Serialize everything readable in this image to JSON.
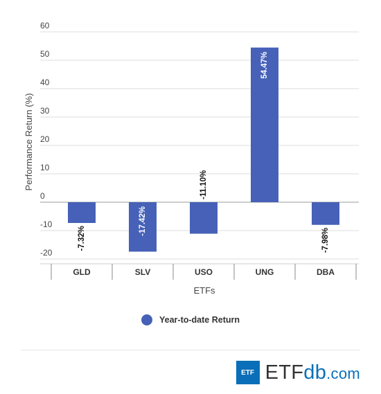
{
  "chart_data": {
    "type": "bar",
    "categories": [
      "GLD",
      "SLV",
      "USO",
      "UNG",
      "DBA"
    ],
    "series": [
      {
        "name": "Year-to-date Return",
        "values": [
          -7.32,
          -17.42,
          -11.1,
          54.47,
          -7.98
        ],
        "labels": [
          "-7.32%",
          "-17.42%",
          "-11.10%",
          "54.47%",
          "-7.98%"
        ],
        "color": "#4661b7"
      }
    ],
    "xlabel": "ETFs",
    "ylabel": "Performance Return (%)",
    "ylim": [
      -20,
      60
    ],
    "yticks": [
      -20,
      -10,
      0,
      10,
      20,
      30,
      40,
      50,
      60
    ],
    "grid": true,
    "legend_position": "bottom-center"
  },
  "legend": {
    "label": "Year-to-date Return"
  },
  "brand": {
    "box": "ETF",
    "etf": "ETF",
    "db": "db",
    "com": ".com"
  }
}
